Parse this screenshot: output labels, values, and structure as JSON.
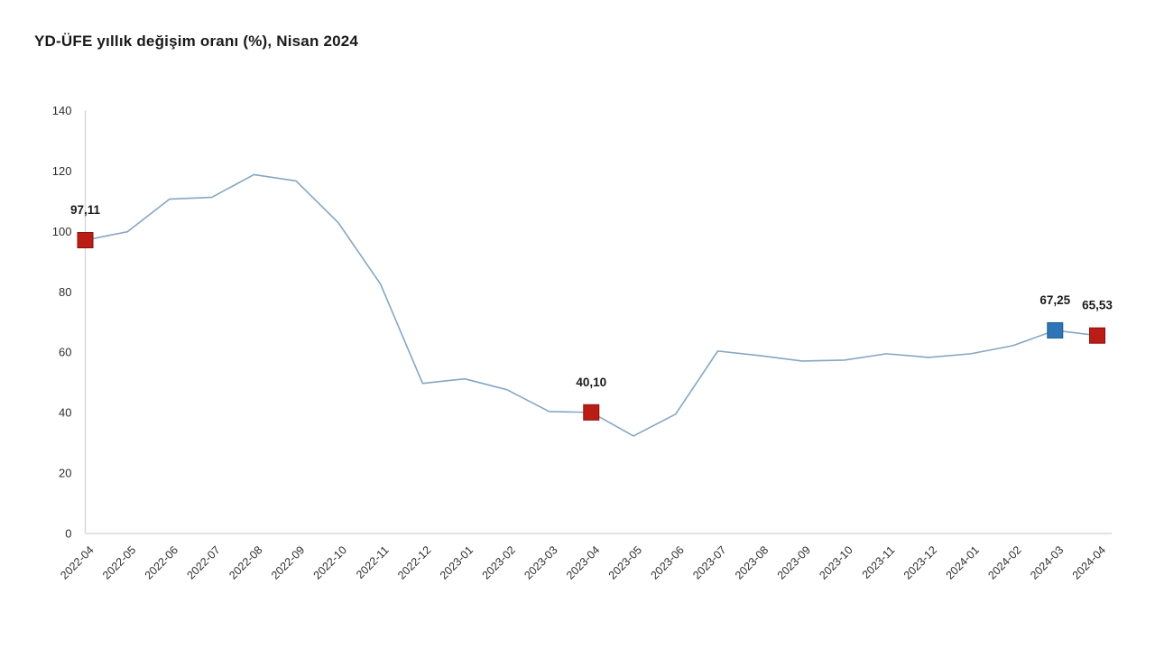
{
  "title": "YD-ÜFE yıllık değişim oranı (%), Nisan 2024",
  "chart_data": {
    "type": "line",
    "title": "YD-ÜFE yıllık değişim oranı (%), Nisan 2024",
    "xlabel": "",
    "ylabel": "",
    "ylim": [
      0,
      140
    ],
    "yticks": [
      0,
      20,
      40,
      60,
      80,
      100,
      120,
      140
    ],
    "grid": false,
    "legend": "none",
    "categories": [
      "2022-04",
      "2022-05",
      "2022-06",
      "2022-07",
      "2022-08",
      "2022-09",
      "2022-10",
      "2022-11",
      "2022-12",
      "2023-01",
      "2023-02",
      "2023-03",
      "2023-04",
      "2023-05",
      "2023-06",
      "2023-07",
      "2023-08",
      "2023-09",
      "2023-10",
      "2023-11",
      "2023-12",
      "2024-01",
      "2024-02",
      "2024-03",
      "2024-04"
    ],
    "series": [
      {
        "name": "YD-ÜFE yıllık değişim oranı (%)",
        "values": [
          97.11,
          99.9,
          110.7,
          111.3,
          118.8,
          116.7,
          102.9,
          82.6,
          49.7,
          51.2,
          47.6,
          40.4,
          40.1,
          32.3,
          39.5,
          60.4,
          58.9,
          57.1,
          57.4,
          59.5,
          58.3,
          59.5,
          62.2,
          67.25,
          65.53
        ]
      }
    ],
    "marked_points": [
      {
        "category": "2022-04",
        "index": 0,
        "value": 97.11,
        "label": "97,11",
        "marker_color": "#b91d15",
        "marker_shape": "square"
      },
      {
        "category": "2023-04",
        "index": 12,
        "value": 40.1,
        "label": "40,10",
        "marker_color": "#b91d15",
        "marker_shape": "square"
      },
      {
        "category": "2024-03",
        "index": 23,
        "value": 67.25,
        "label": "67,25",
        "marker_color": "#2e75b6",
        "marker_shape": "square"
      },
      {
        "category": "2024-04",
        "index": 24,
        "value": 65.53,
        "label": "65,53",
        "marker_color": "#b91d15",
        "marker_shape": "square"
      }
    ],
    "colors": {
      "line": "#86a6c2",
      "marker_red": "#b91d15",
      "marker_red_stroke": "#8e1009",
      "marker_blue": "#2e75b6",
      "marker_blue_stroke": "#1f5c96",
      "axis_line": "#d8d8d8",
      "tick_label": "#2f2f2f",
      "data_label": "#1a1a1a",
      "background": "#ffffff"
    }
  }
}
